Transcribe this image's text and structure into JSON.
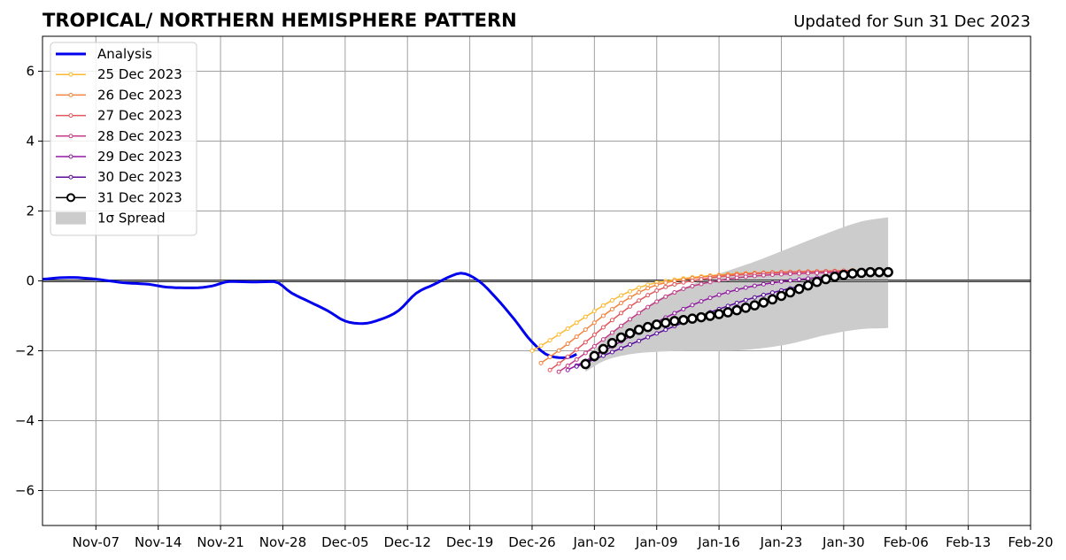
{
  "chart_data": {
    "type": "line",
    "title": "TROPICAL/ NORTHERN HEMISPHERE PATTERN",
    "subtitle": "Updated for Sun 31 Dec 2023",
    "ylim": [
      -7,
      7
    ],
    "yticks": [
      -6,
      -4,
      -2,
      0,
      2,
      4,
      6
    ],
    "ytick_labels": [
      "−6",
      "−4",
      "−2",
      "0",
      "2",
      "4",
      "6"
    ],
    "xlim": [
      "2023-11-01",
      "2024-02-20"
    ],
    "xticks": [
      "2023-11-07",
      "2023-11-14",
      "2023-11-21",
      "2023-11-28",
      "2023-12-05",
      "2023-12-12",
      "2023-12-19",
      "2023-12-26",
      "2024-01-02",
      "2024-01-09",
      "2024-01-16",
      "2024-01-23",
      "2024-01-30",
      "2024-02-06",
      "2024-02-13",
      "2024-02-20"
    ],
    "xtick_labels": [
      "Nov-07",
      "Nov-14",
      "Nov-21",
      "Nov-28",
      "Dec-05",
      "Dec-12",
      "Dec-19",
      "Dec-26",
      "Jan-02",
      "Jan-09",
      "Jan-16",
      "Jan-23",
      "Jan-30",
      "Feb-06",
      "Feb-13",
      "Feb-20"
    ],
    "grid": true,
    "legend_position": "top-left",
    "series": [
      {
        "name": "Analysis",
        "color": "#0000ee",
        "style": "line",
        "x": [
          "2023-11-01",
          "2023-11-04",
          "2023-11-07",
          "2023-11-10",
          "2023-11-13",
          "2023-11-15",
          "2023-11-18",
          "2023-11-20",
          "2023-11-22",
          "2023-11-25",
          "2023-11-27",
          "2023-11-29",
          "2023-12-01",
          "2023-12-03",
          "2023-12-05",
          "2023-12-07",
          "2023-12-09",
          "2023-12-11",
          "2023-12-13",
          "2023-12-15",
          "2023-12-17",
          "2023-12-18",
          "2023-12-20",
          "2023-12-22",
          "2023-12-24",
          "2023-12-26",
          "2023-12-28",
          "2023-12-30",
          "2023-12-31"
        ],
        "y": [
          0.05,
          0.1,
          0.05,
          -0.05,
          -0.1,
          -0.18,
          -0.2,
          -0.15,
          -0.02,
          -0.03,
          -0.02,
          -0.35,
          -0.6,
          -0.85,
          -1.15,
          -1.22,
          -1.1,
          -0.85,
          -0.35,
          -0.1,
          0.15,
          0.22,
          0.0,
          -0.5,
          -1.1,
          -1.75,
          -2.15,
          -2.2,
          -2.1
        ]
      },
      {
        "name": "25 Dec 2023",
        "color": "#fbb932",
        "style": "dots",
        "x": [
          "2023-12-26",
          "2024-01-09",
          "2024-01-31"
        ],
        "y": [
          -2.0,
          -0.05,
          0.3
        ]
      },
      {
        "name": "26 Dec 2023",
        "color": "#f3833e",
        "style": "dots",
        "x": [
          "2023-12-27",
          "2024-01-10",
          "2024-01-31"
        ],
        "y": [
          -2.35,
          -0.05,
          0.3
        ]
      },
      {
        "name": "27 Dec 2023",
        "color": "#e2575c",
        "style": "dots",
        "x": [
          "2023-12-28",
          "2024-01-11",
          "2024-01-31"
        ],
        "y": [
          -2.55,
          -0.1,
          0.3
        ]
      },
      {
        "name": "28 Dec 2023",
        "color": "#c33c85",
        "style": "dots",
        "x": [
          "2023-12-29",
          "2024-01-13",
          "2024-02-01"
        ],
        "y": [
          -2.6,
          -0.15,
          0.28
        ]
      },
      {
        "name": "29 Dec 2023",
        "color": "#9018a0",
        "style": "dots",
        "x": [
          "2023-12-30",
          "2024-01-16",
          "2024-02-01"
        ],
        "y": [
          -2.55,
          -0.4,
          0.25
        ]
      },
      {
        "name": "30 Dec 2023",
        "color": "#5a0b9e",
        "style": "dots",
        "x": [
          "2023-12-31",
          "2024-01-19",
          "2024-02-01"
        ],
        "y": [
          -2.45,
          -0.55,
          0.22
        ]
      },
      {
        "name": "31 Dec 2023",
        "color": "#000000",
        "style": "circles",
        "x": [
          "2024-01-01",
          "2024-01-02",
          "2024-01-03",
          "2024-01-04",
          "2024-01-05",
          "2024-01-06",
          "2024-01-07",
          "2024-01-08",
          "2024-01-09",
          "2024-01-10",
          "2024-01-11",
          "2024-01-12",
          "2024-01-13",
          "2024-01-14",
          "2024-01-15",
          "2024-01-16",
          "2024-01-17",
          "2024-01-18",
          "2024-01-19",
          "2024-01-20",
          "2024-01-21",
          "2024-01-22",
          "2024-01-23",
          "2024-01-24",
          "2024-01-25",
          "2024-01-26",
          "2024-01-27",
          "2024-01-28",
          "2024-01-29",
          "2024-01-30",
          "2024-01-31",
          "2024-02-01",
          "2024-02-02",
          "2024-02-03",
          "2024-02-04"
        ],
        "y": [
          -2.38,
          -2.15,
          -1.95,
          -1.78,
          -1.62,
          -1.5,
          -1.4,
          -1.32,
          -1.25,
          -1.2,
          -1.15,
          -1.12,
          -1.08,
          -1.04,
          -1.0,
          -0.95,
          -0.9,
          -0.84,
          -0.77,
          -0.7,
          -0.62,
          -0.53,
          -0.43,
          -0.33,
          -0.23,
          -0.13,
          -0.03,
          0.05,
          0.12,
          0.17,
          0.21,
          0.23,
          0.25,
          0.25,
          0.25
        ]
      }
    ],
    "spread": {
      "name": "1σ Spread",
      "color": "#cccccc",
      "x": [
        "2024-01-01",
        "2024-01-03",
        "2024-01-06",
        "2024-01-09",
        "2024-01-13",
        "2024-01-16",
        "2024-01-20",
        "2024-01-24",
        "2024-01-28",
        "2024-02-01",
        "2024-02-04"
      ],
      "upper": [
        -2.3,
        -1.7,
        -1.1,
        -0.55,
        -0.1,
        0.2,
        0.55,
        0.95,
        1.35,
        1.7,
        1.82
      ],
      "lower": [
        -2.6,
        -2.3,
        -2.1,
        -2.03,
        -2.0,
        -2.0,
        -1.95,
        -1.8,
        -1.55,
        -1.38,
        -1.35
      ]
    }
  }
}
